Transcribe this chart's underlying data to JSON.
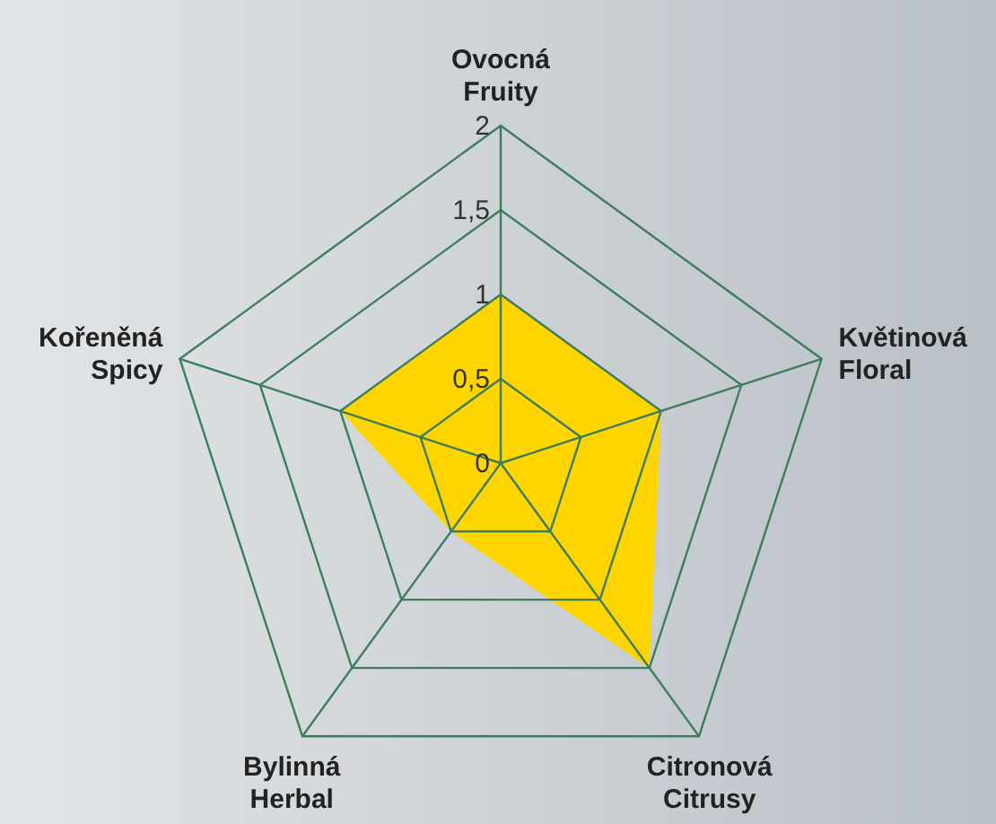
{
  "chart_data": {
    "type": "radar",
    "categories": [
      "Ovocná\nFruity",
      "Květinová\nFloral",
      "Citronová\nCitrusy",
      "Bylinná\nHerbal",
      "Kořeněná\nSpicy"
    ],
    "series": [
      {
        "color": "#ffd500",
        "values": [
          1,
          1,
          1.5,
          0.5,
          1
        ]
      }
    ],
    "ylim": [
      0,
      2
    ],
    "yticks": [
      0,
      {
        "value": 0.5,
        "label": "0,5"
      },
      1,
      {
        "value": 1.5,
        "label": "1,5"
      },
      2
    ],
    "grid": true
  }
}
